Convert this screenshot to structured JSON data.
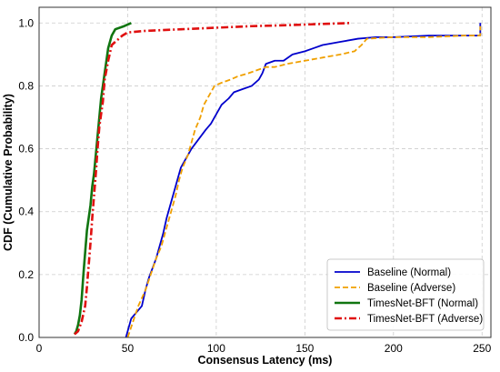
{
  "chart_data": {
    "type": "line",
    "title": "",
    "xlabel": "Consensus Latency (ms)",
    "ylabel": "CDF (Cumulative Probability)",
    "xlim": [
      0,
      255
    ],
    "ylim": [
      0,
      1.05
    ],
    "xticks": [
      "0",
      "50",
      "100",
      "150",
      "200",
      "250"
    ],
    "yticks": [
      "0.0",
      "0.2",
      "0.4",
      "0.6",
      "0.8",
      "1.0"
    ],
    "grid": true,
    "legend_position": "bottom-right",
    "series": [
      {
        "name": "Baseline (Normal)",
        "color": "#0000cc",
        "style": "solid",
        "points": [
          [
            49,
            0.0
          ],
          [
            50,
            0.02
          ],
          [
            52,
            0.06
          ],
          [
            55,
            0.08
          ],
          [
            58,
            0.1
          ],
          [
            60,
            0.15
          ],
          [
            62,
            0.19
          ],
          [
            64,
            0.22
          ],
          [
            66,
            0.25
          ],
          [
            68,
            0.29
          ],
          [
            70,
            0.33
          ],
          [
            72,
            0.38
          ],
          [
            74,
            0.42
          ],
          [
            76,
            0.46
          ],
          [
            78,
            0.5
          ],
          [
            80,
            0.54
          ],
          [
            83,
            0.57
          ],
          [
            86,
            0.6
          ],
          [
            90,
            0.63
          ],
          [
            94,
            0.66
          ],
          [
            97,
            0.68
          ],
          [
            100,
            0.71
          ],
          [
            103,
            0.74
          ],
          [
            107,
            0.76
          ],
          [
            110,
            0.78
          ],
          [
            115,
            0.79
          ],
          [
            120,
            0.8
          ],
          [
            124,
            0.82
          ],
          [
            126,
            0.84
          ],
          [
            128,
            0.87
          ],
          [
            133,
            0.88
          ],
          [
            138,
            0.88
          ],
          [
            143,
            0.9
          ],
          [
            150,
            0.91
          ],
          [
            155,
            0.92
          ],
          [
            160,
            0.93
          ],
          [
            170,
            0.94
          ],
          [
            180,
            0.95
          ],
          [
            190,
            0.955
          ],
          [
            200,
            0.955
          ],
          [
            220,
            0.96
          ],
          [
            235,
            0.96
          ],
          [
            249,
            0.96
          ],
          [
            249,
            1.0
          ]
        ]
      },
      {
        "name": "Baseline (Adverse)",
        "color": "#f0a000",
        "style": "dashed",
        "points": [
          [
            50,
            0.0
          ],
          [
            53,
            0.05
          ],
          [
            56,
            0.1
          ],
          [
            60,
            0.15
          ],
          [
            63,
            0.2
          ],
          [
            66,
            0.25
          ],
          [
            69,
            0.29
          ],
          [
            71,
            0.33
          ],
          [
            73,
            0.37
          ],
          [
            75,
            0.41
          ],
          [
            77,
            0.45
          ],
          [
            79,
            0.5
          ],
          [
            81,
            0.54
          ],
          [
            84,
            0.58
          ],
          [
            86,
            0.62
          ],
          [
            88,
            0.66
          ],
          [
            91,
            0.7
          ],
          [
            93,
            0.74
          ],
          [
            96,
            0.77
          ],
          [
            99,
            0.8
          ],
          [
            103,
            0.81
          ],
          [
            108,
            0.82
          ],
          [
            112,
            0.83
          ],
          [
            118,
            0.84
          ],
          [
            123,
            0.85
          ],
          [
            128,
            0.86
          ],
          [
            133,
            0.86
          ],
          [
            140,
            0.87
          ],
          [
            150,
            0.88
          ],
          [
            160,
            0.89
          ],
          [
            170,
            0.9
          ],
          [
            178,
            0.91
          ],
          [
            182,
            0.93
          ],
          [
            185,
            0.95
          ],
          [
            200,
            0.955
          ],
          [
            220,
            0.955
          ],
          [
            240,
            0.96
          ],
          [
            249,
            0.96
          ],
          [
            249,
            0.99
          ]
        ]
      },
      {
        "name": "TimesNet-BFT (Normal)",
        "color": "#107510",
        "style": "solid",
        "points": [
          [
            20,
            0.01
          ],
          [
            21,
            0.02
          ],
          [
            22,
            0.04
          ],
          [
            23,
            0.07
          ],
          [
            24,
            0.12
          ],
          [
            25,
            0.2
          ],
          [
            26,
            0.27
          ],
          [
            27,
            0.34
          ],
          [
            28,
            0.38
          ],
          [
            29,
            0.42
          ],
          [
            30,
            0.48
          ],
          [
            31,
            0.52
          ],
          [
            32,
            0.58
          ],
          [
            33,
            0.64
          ],
          [
            34,
            0.7
          ],
          [
            35,
            0.76
          ],
          [
            36,
            0.8
          ],
          [
            37,
            0.84
          ],
          [
            38,
            0.88
          ],
          [
            39,
            0.92
          ],
          [
            41,
            0.96
          ],
          [
            43,
            0.98
          ],
          [
            48,
            0.99
          ],
          [
            52,
            1.0
          ]
        ]
      },
      {
        "name": "TimesNet-BFT (Adverse)",
        "color": "#e01010",
        "style": "dashdot",
        "points": [
          [
            20,
            0.01
          ],
          [
            22,
            0.02
          ],
          [
            24,
            0.05
          ],
          [
            26,
            0.1
          ],
          [
            27,
            0.16
          ],
          [
            28,
            0.23
          ],
          [
            29,
            0.3
          ],
          [
            30,
            0.38
          ],
          [
            31,
            0.45
          ],
          [
            32,
            0.52
          ],
          [
            33,
            0.6
          ],
          [
            34,
            0.67
          ],
          [
            36,
            0.75
          ],
          [
            37,
            0.82
          ],
          [
            39,
            0.88
          ],
          [
            41,
            0.93
          ],
          [
            43,
            0.94
          ],
          [
            45,
            0.95
          ],
          [
            47,
            0.96
          ],
          [
            50,
            0.97
          ],
          [
            60,
            0.975
          ],
          [
            80,
            0.98
          ],
          [
            100,
            0.985
          ],
          [
            120,
            0.99
          ],
          [
            140,
            0.993
          ],
          [
            160,
            0.997
          ],
          [
            176,
            1.0
          ]
        ]
      }
    ]
  }
}
